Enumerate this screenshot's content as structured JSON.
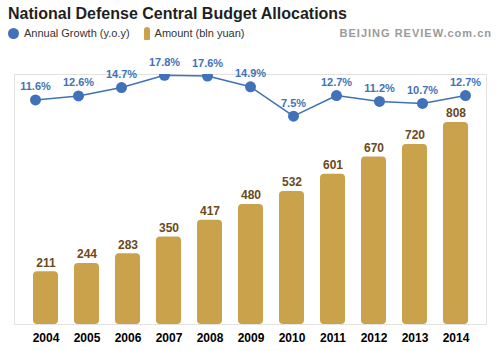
{
  "chart_data": {
    "type": "bar",
    "title": "National Defense Central Budget Allocations",
    "annotation": "BEIJING REVIEW.com.cn",
    "categories": [
      "2004",
      "2005",
      "2006",
      "2007",
      "2008",
      "2009",
      "2010",
      "2011",
      "2012",
      "2013",
      "2014"
    ],
    "series": [
      {
        "name": "Annual Growth (y.o.y)",
        "type": "line",
        "axis": "y2",
        "color": "#3f72b8",
        "marker": "circle",
        "values": [
          11.6,
          12.6,
          14.7,
          17.8,
          17.6,
          14.9,
          7.5,
          12.7,
          11.2,
          10.7,
          12.7
        ],
        "value_labels": [
          "11.6%",
          "12.6%",
          "14.7%",
          "17.8%",
          "17.6%",
          "14.9%",
          "7.5%",
          "12.7%",
          "11.2%",
          "10.7%",
          "12.7%"
        ]
      },
      {
        "name": "Amount (bln yuan)",
        "type": "bar",
        "color": "#c9a24b",
        "values": [
          211,
          244,
          283,
          350,
          417,
          480,
          532,
          601,
          670,
          720,
          808
        ]
      }
    ],
    "ylim": [
      0,
      1000
    ],
    "y2lim": [
      -45,
      18
    ],
    "data_labels": true,
    "tick_labels": "x",
    "legend": "top-left"
  }
}
